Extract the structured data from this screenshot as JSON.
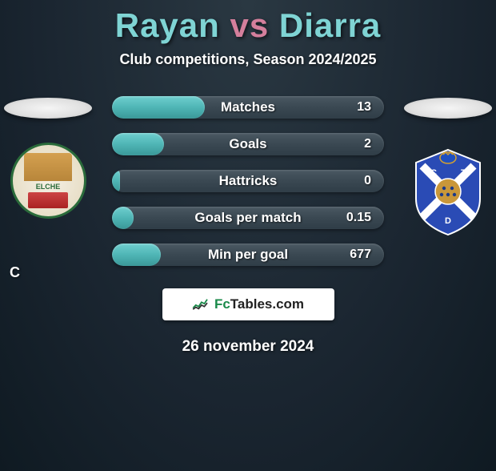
{
  "title": {
    "player1": "Rayan",
    "vs": "vs",
    "player2": "Diarra",
    "p1_color": "#7fd4d4",
    "vs_color": "#d47f9c",
    "p2_color": "#7fd4d4"
  },
  "subtitle": "Club competitions, Season 2024/2025",
  "left_letter": "C",
  "crests": {
    "left": {
      "name": "Elche",
      "label": "ELCHE"
    },
    "right": {
      "name": "Tenerife"
    }
  },
  "stats": [
    {
      "label": "Matches",
      "value": "13",
      "fill_pct": 34
    },
    {
      "label": "Goals",
      "value": "2",
      "fill_pct": 19
    },
    {
      "label": "Hattricks",
      "value": "0",
      "fill_pct": 3
    },
    {
      "label": "Goals per match",
      "value": "0.15",
      "fill_pct": 8
    },
    {
      "label": "Min per goal",
      "value": "677",
      "fill_pct": 18
    }
  ],
  "bar_colors": {
    "track": "#3a4852",
    "fill": "#4fb5b5",
    "text": "#ffffff"
  },
  "footer": {
    "brand_fc": "Fc",
    "brand_rest": "Tables.com"
  },
  "date": "26 november 2024",
  "background": "#1a2530"
}
